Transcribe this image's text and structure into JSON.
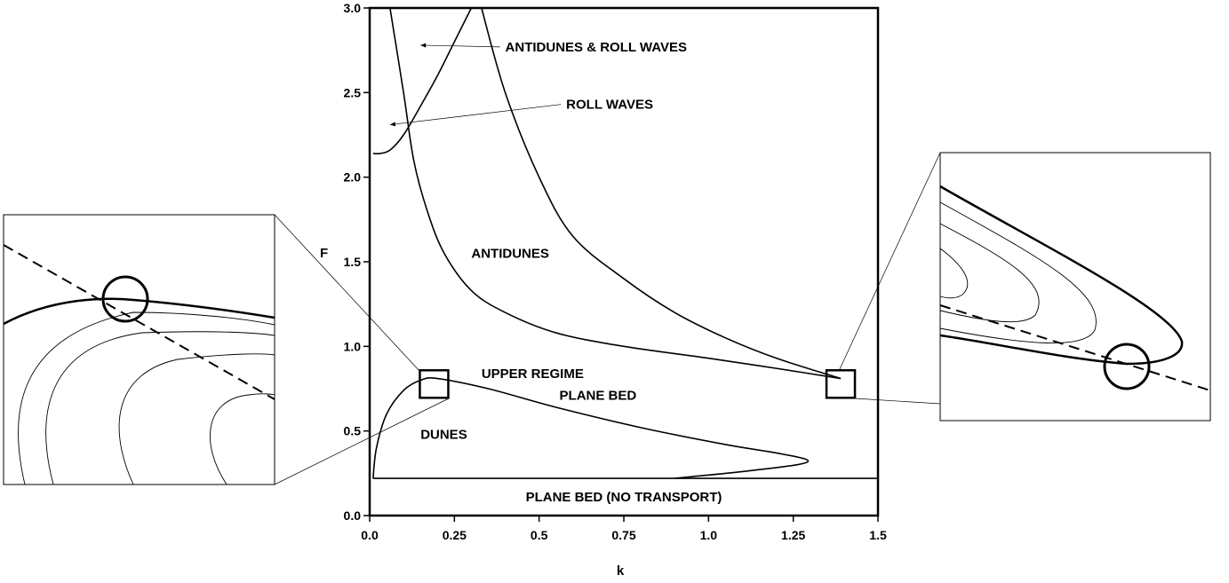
{
  "chart_data": {
    "type": "line",
    "xlabel": "k",
    "ylabel": "F",
    "xlim": [
      0,
      1.5
    ],
    "ylim": [
      0,
      3.0
    ],
    "x_ticks": [
      "0.0",
      "0.25",
      "0.5",
      "0.75",
      "1.0",
      "1.25",
      "1.5"
    ],
    "y_ticks": [
      "0.0",
      "0.5",
      "1.0",
      "1.5",
      "2.0",
      "2.5",
      "3.0"
    ],
    "grid": false,
    "series": [
      {
        "points": [
          [
            0.01,
            2.14
          ],
          [
            0.03,
            2.14
          ],
          [
            0.06,
            2.16
          ],
          [
            0.1,
            2.25
          ],
          [
            0.15,
            2.42
          ],
          [
            0.2,
            2.6
          ],
          [
            0.25,
            2.8
          ],
          [
            0.3,
            3.0
          ]
        ]
      },
      {
        "points": [
          [
            0.06,
            3.0
          ],
          [
            0.1,
            2.5
          ],
          [
            0.13,
            2.1
          ],
          [
            0.17,
            1.8
          ],
          [
            0.22,
            1.55
          ],
          [
            0.3,
            1.33
          ],
          [
            0.4,
            1.2
          ],
          [
            0.55,
            1.08
          ],
          [
            0.75,
            1.0
          ],
          [
            1.0,
            0.93
          ],
          [
            1.2,
            0.87
          ],
          [
            1.39,
            0.81
          ]
        ]
      },
      {
        "points": [
          [
            0.33,
            3.0
          ],
          [
            0.4,
            2.5
          ],
          [
            0.5,
            2.0
          ],
          [
            0.6,
            1.65
          ],
          [
            0.75,
            1.4
          ],
          [
            0.9,
            1.2
          ],
          [
            1.05,
            1.05
          ],
          [
            1.2,
            0.93
          ],
          [
            1.39,
            0.81
          ]
        ]
      },
      {
        "points": [
          [
            0.01,
            0.22
          ],
          [
            0.02,
            0.4
          ],
          [
            0.05,
            0.6
          ],
          [
            0.1,
            0.74
          ],
          [
            0.15,
            0.8
          ],
          [
            0.2,
            0.81
          ],
          [
            0.35,
            0.75
          ],
          [
            0.55,
            0.64
          ],
          [
            0.8,
            0.52
          ],
          [
            1.05,
            0.42
          ],
          [
            1.2,
            0.37
          ],
          [
            1.29,
            0.33
          ],
          [
            1.26,
            0.3
          ],
          [
            1.1,
            0.26
          ],
          [
            0.95,
            0.23
          ],
          [
            0.9,
            0.22
          ]
        ]
      },
      {
        "points": [
          [
            0.01,
            0.22
          ],
          [
            1.5,
            0.22
          ]
        ]
      }
    ],
    "annotations": [
      {
        "text": "ANTIDUNES & ROLL WAVES",
        "x": 0.4,
        "y": 2.77,
        "arrow_to": [
          0.15,
          2.78
        ]
      },
      {
        "text": "ROLL WAVES",
        "x": 0.58,
        "y": 2.43,
        "arrow_to": [
          0.06,
          2.31
        ]
      },
      {
        "text": "ANTIDUNES",
        "x": 0.3,
        "y": 1.55
      },
      {
        "text": "UPPER REGIME",
        "x": 0.33,
        "y": 0.84
      },
      {
        "text": "PLANE BED",
        "x": 0.56,
        "y": 0.71
      },
      {
        "text": "DUNES",
        "x": 0.15,
        "y": 0.48
      },
      {
        "text": "PLANE BED (NO TRANSPORT)",
        "x": 0.75,
        "y": 0.11
      }
    ],
    "zoom_boxes": [
      {
        "center": [
          0.19,
          0.78
        ]
      },
      {
        "center": [
          1.39,
          0.78
        ]
      }
    ]
  }
}
